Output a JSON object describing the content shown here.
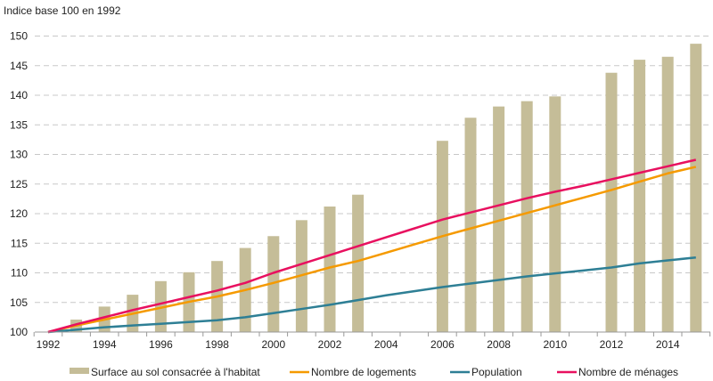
{
  "chart_data": {
    "type": "bar+line",
    "title": "",
    "ylabel": "Indice base 100 en 1992",
    "xlabel": "",
    "ylim": [
      100,
      150
    ],
    "yticks": [
      100,
      105,
      110,
      115,
      120,
      125,
      130,
      135,
      140,
      145,
      150
    ],
    "xtick_labels": [
      "1992",
      "1994",
      "1996",
      "1998",
      "2000",
      "2002",
      "2004",
      "2006",
      "2008",
      "2010",
      "2012",
      "2014"
    ],
    "grid": true,
    "legend_position": "bottom",
    "x": [
      1992,
      1993,
      1994,
      1995,
      1996,
      1997,
      1998,
      1999,
      2000,
      2001,
      2002,
      2003,
      2004,
      2005,
      2006,
      2007,
      2008,
      2009,
      2010,
      2011,
      2012,
      2013,
      2014,
      2015
    ],
    "series": [
      {
        "name": "Surface au sol consacrée à l'habitat",
        "kind": "bar",
        "color": "#c5bd98",
        "values": [
          null,
          102.1,
          104.3,
          106.3,
          108.6,
          110.1,
          112.0,
          114.2,
          116.2,
          118.9,
          121.2,
          123.2,
          null,
          null,
          132.3,
          136.2,
          138.1,
          139.0,
          139.8,
          null,
          143.8,
          146.0,
          146.5,
          148.7
        ]
      },
      {
        "name": "Nombre de logements",
        "kind": "line",
        "color": "#f59a00",
        "values": [
          100,
          101.1,
          102.1,
          103.1,
          104.1,
          105.1,
          106.0,
          107.1,
          108.3,
          109.6,
          110.9,
          112.0,
          113.4,
          114.8,
          116.2,
          117.5,
          118.8,
          120.1,
          121.4,
          122.7,
          124.0,
          125.4,
          126.8,
          127.9
        ]
      },
      {
        "name": "Population",
        "kind": "line",
        "color": "#2e7f95",
        "values": [
          100,
          100.4,
          100.8,
          101.1,
          101.4,
          101.7,
          102.0,
          102.5,
          103.2,
          103.9,
          104.6,
          105.4,
          106.2,
          106.9,
          107.6,
          108.2,
          108.8,
          109.4,
          109.9,
          110.4,
          110.9,
          111.6,
          112.1,
          112.6
        ]
      },
      {
        "name": "Nombre de ménages",
        "kind": "line",
        "color": "#e8105f",
        "values": [
          100,
          101.3,
          102.5,
          103.7,
          104.8,
          105.9,
          107.0,
          108.3,
          110.0,
          111.5,
          113.0,
          114.5,
          116.0,
          117.5,
          119.0,
          120.2,
          121.4,
          122.6,
          123.7,
          124.7,
          125.8,
          126.9,
          128.0,
          129.1
        ]
      }
    ]
  }
}
